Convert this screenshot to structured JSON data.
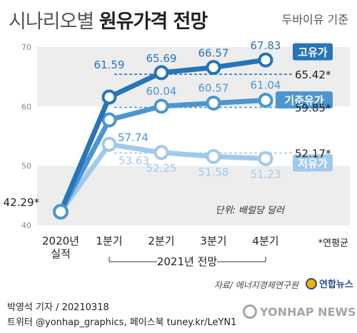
{
  "header": {
    "title_light": "시나리오별",
    "title_bold": "원유가격 전망",
    "crude_type": "두바이유 기준"
  },
  "footer": {
    "author_line": "박영석 기자 / 20210318",
    "social_line": "트위터 @yonhap_graphics, 페이스북 tuney.kr/LeYN1",
    "agency_logo": "연합뉴스",
    "watermark": "YONHAP NEWS"
  },
  "chart_data": {
    "type": "line",
    "categories": [
      "2020년\n실적",
      "1분기",
      "2분기",
      "3분기",
      "4분기"
    ],
    "period_label": "2021년 전망",
    "ylim": [
      40,
      70
    ],
    "yticks": [
      40,
      50,
      60,
      70
    ],
    "unit_note": "단위: 배럴당 달러",
    "average_note": "*연평균",
    "source_note": "자료/ 에너지경제연구원",
    "series": [
      {
        "name": "고유가",
        "color": "#2674b9",
        "values": [
          42.29,
          61.59,
          65.69,
          66.57,
          67.83
        ],
        "annual_avg": 65.42,
        "annual_avg_label": "65.42*"
      },
      {
        "name": "기준유가",
        "color": "#4b96d1",
        "values": [
          42.29,
          57.74,
          60.04,
          60.57,
          61.04
        ],
        "annual_avg": 59.85,
        "annual_avg_label": "59.85*"
      },
      {
        "name": "저유가",
        "color": "#a2c9e9",
        "values": [
          42.29,
          53.63,
          52.25,
          51.58,
          51.23
        ],
        "annual_avg": 52.17,
        "annual_avg_label": "52.17*"
      }
    ],
    "start_label": "42.29*"
  }
}
